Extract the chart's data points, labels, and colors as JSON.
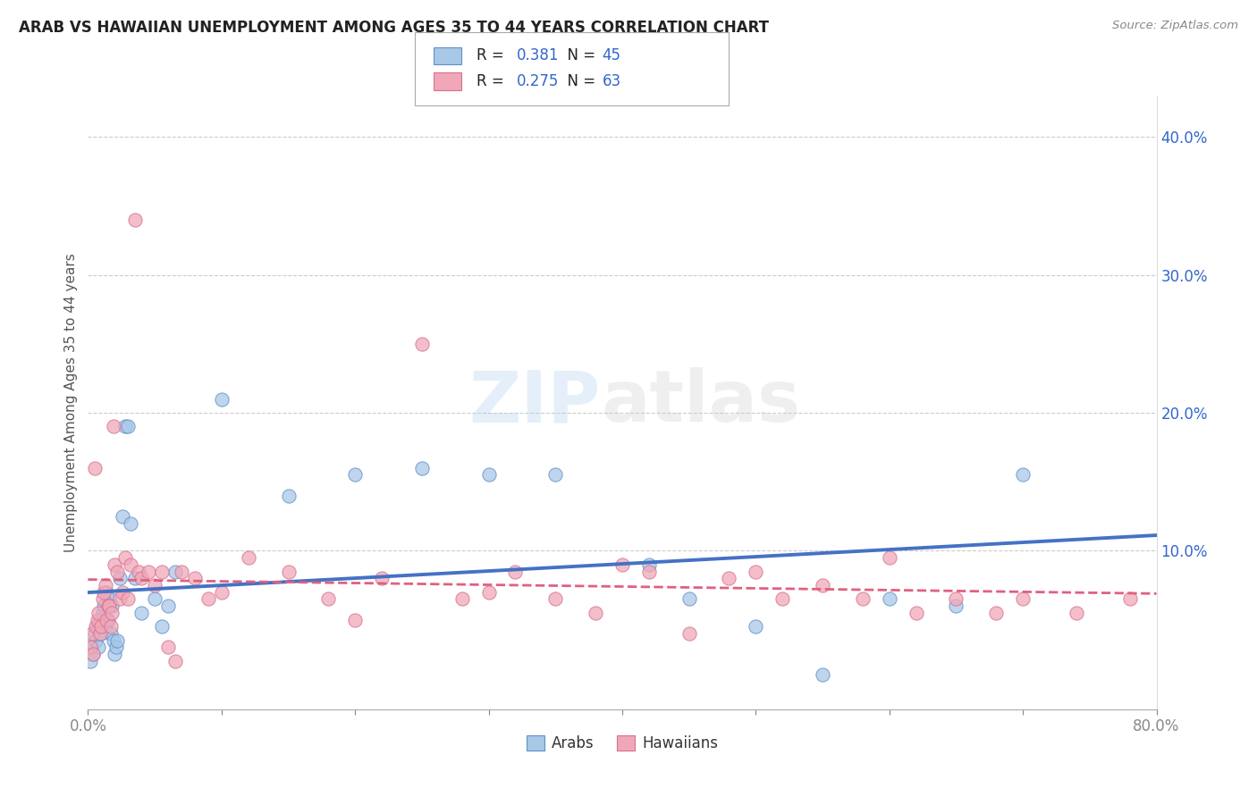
{
  "title": "ARAB VS HAWAIIAN UNEMPLOYMENT AMONG AGES 35 TO 44 YEARS CORRELATION CHART",
  "source": "Source: ZipAtlas.com",
  "ylabel": "Unemployment Among Ages 35 to 44 years",
  "xlim": [
    0.0,
    0.8
  ],
  "ylim": [
    -0.015,
    0.43
  ],
  "xticks": [
    0.0,
    0.1,
    0.2,
    0.3,
    0.4,
    0.5,
    0.6,
    0.7,
    0.8
  ],
  "yticks": [
    0.1,
    0.2,
    0.3,
    0.4
  ],
  "ytick_labels": [
    "10.0%",
    "20.0%",
    "30.0%",
    "40.0%"
  ],
  "arab_R": 0.381,
  "arab_N": 45,
  "hawaiian_R": 0.275,
  "hawaiian_N": 63,
  "arab_color": "#A8C8E8",
  "arab_edge_color": "#6090C8",
  "arab_line_color": "#4472C4",
  "hawaiian_color": "#F0A8B8",
  "hawaiian_edge_color": "#D87090",
  "hawaiian_line_color": "#E06080",
  "background_color": "#ffffff",
  "arab_x": [
    0.002,
    0.003,
    0.004,
    0.005,
    0.006,
    0.007,
    0.008,
    0.009,
    0.01,
    0.011,
    0.012,
    0.013,
    0.014,
    0.015,
    0.016,
    0.017,
    0.018,
    0.019,
    0.02,
    0.021,
    0.022,
    0.024,
    0.026,
    0.028,
    0.03,
    0.032,
    0.035,
    0.04,
    0.05,
    0.055,
    0.06,
    0.065,
    0.1,
    0.15,
    0.2,
    0.25,
    0.3,
    0.35,
    0.42,
    0.45,
    0.5,
    0.55,
    0.6,
    0.65,
    0.7
  ],
  "arab_y": [
    0.02,
    0.03,
    0.025,
    0.04,
    0.035,
    0.045,
    0.03,
    0.05,
    0.04,
    0.055,
    0.06,
    0.045,
    0.07,
    0.05,
    0.065,
    0.04,
    0.06,
    0.035,
    0.025,
    0.03,
    0.035,
    0.08,
    0.125,
    0.19,
    0.19,
    0.12,
    0.08,
    0.055,
    0.065,
    0.045,
    0.06,
    0.085,
    0.21,
    0.14,
    0.155,
    0.16,
    0.155,
    0.155,
    0.09,
    0.065,
    0.045,
    0.01,
    0.065,
    0.06,
    0.155
  ],
  "hawaiian_x": [
    0.002,
    0.003,
    0.004,
    0.005,
    0.006,
    0.007,
    0.008,
    0.009,
    0.01,
    0.011,
    0.012,
    0.013,
    0.014,
    0.015,
    0.016,
    0.017,
    0.018,
    0.019,
    0.02,
    0.022,
    0.024,
    0.026,
    0.028,
    0.03,
    0.032,
    0.035,
    0.038,
    0.04,
    0.045,
    0.05,
    0.055,
    0.06,
    0.065,
    0.07,
    0.08,
    0.09,
    0.1,
    0.12,
    0.15,
    0.18,
    0.2,
    0.22,
    0.25,
    0.28,
    0.3,
    0.32,
    0.35,
    0.38,
    0.4,
    0.42,
    0.45,
    0.48,
    0.5,
    0.52,
    0.55,
    0.58,
    0.6,
    0.62,
    0.65,
    0.68,
    0.7,
    0.74,
    0.78
  ],
  "hawaiian_y": [
    0.03,
    0.04,
    0.025,
    0.16,
    0.045,
    0.05,
    0.055,
    0.04,
    0.045,
    0.065,
    0.07,
    0.075,
    0.05,
    0.06,
    0.06,
    0.045,
    0.055,
    0.19,
    0.09,
    0.085,
    0.065,
    0.07,
    0.095,
    0.065,
    0.09,
    0.34,
    0.085,
    0.08,
    0.085,
    0.075,
    0.085,
    0.03,
    0.02,
    0.085,
    0.08,
    0.065,
    0.07,
    0.095,
    0.085,
    0.065,
    0.05,
    0.08,
    0.25,
    0.065,
    0.07,
    0.085,
    0.065,
    0.055,
    0.09,
    0.085,
    0.04,
    0.08,
    0.085,
    0.065,
    0.075,
    0.065,
    0.095,
    0.055,
    0.065,
    0.055,
    0.065,
    0.055,
    0.065
  ]
}
